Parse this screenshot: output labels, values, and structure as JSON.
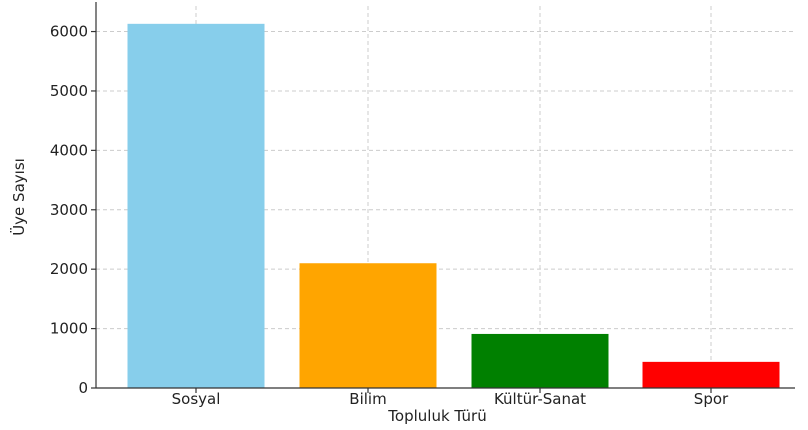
{
  "chart_data": {
    "type": "bar",
    "title": "",
    "xlabel": "Topluluk Türü",
    "ylabel": "Üye Sayısı",
    "categories": [
      "Sosyal",
      "Bilim",
      "Kültür-Sanat",
      "Spor"
    ],
    "values": [
      6130,
      2100,
      910,
      440
    ],
    "colors": [
      "#87ceeb",
      "#ffa500",
      "#008000",
      "#ff0000"
    ],
    "ylim": [
      0,
      6430
    ],
    "yticks": [
      0,
      1000,
      2000,
      3000,
      4000,
      5000,
      6000
    ],
    "grid": true,
    "legend": "none"
  }
}
